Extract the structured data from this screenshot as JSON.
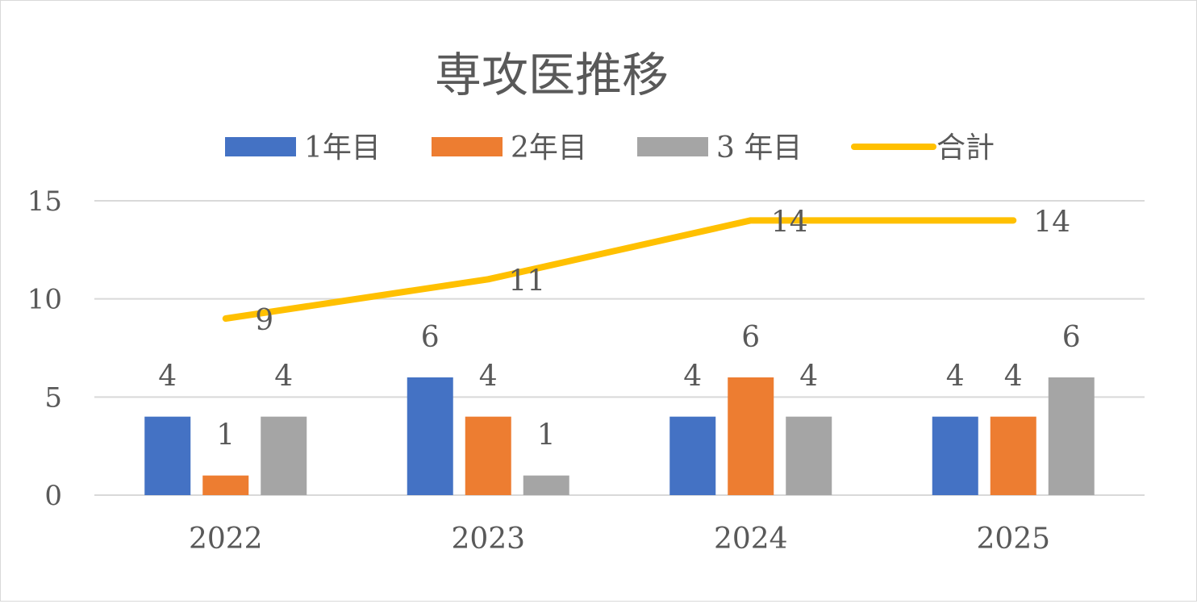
{
  "chart_data": {
    "type": "bar",
    "title": "専攻医推移",
    "categories": [
      "2022",
      "2023",
      "2024",
      "2025"
    ],
    "series": [
      {
        "name": "1年目",
        "kind": "bar",
        "color": "#4472C4",
        "values": [
          4,
          6,
          4,
          4
        ]
      },
      {
        "name": "2年目",
        "kind": "bar",
        "color": "#ED7D31",
        "values": [
          1,
          4,
          6,
          4
        ]
      },
      {
        "name": "3 年目",
        "kind": "bar",
        "color": "#A5A5A5",
        "values": [
          4,
          1,
          4,
          6
        ]
      },
      {
        "name": "合計",
        "kind": "line",
        "color": "#FFC000",
        "values": [
          9,
          11,
          14,
          14
        ]
      }
    ],
    "ylim": [
      0,
      15
    ],
    "yticks": [
      0,
      5,
      10,
      15
    ],
    "xlabel": "",
    "ylabel": "",
    "grid": true,
    "legend": "top",
    "data_labels": true
  }
}
